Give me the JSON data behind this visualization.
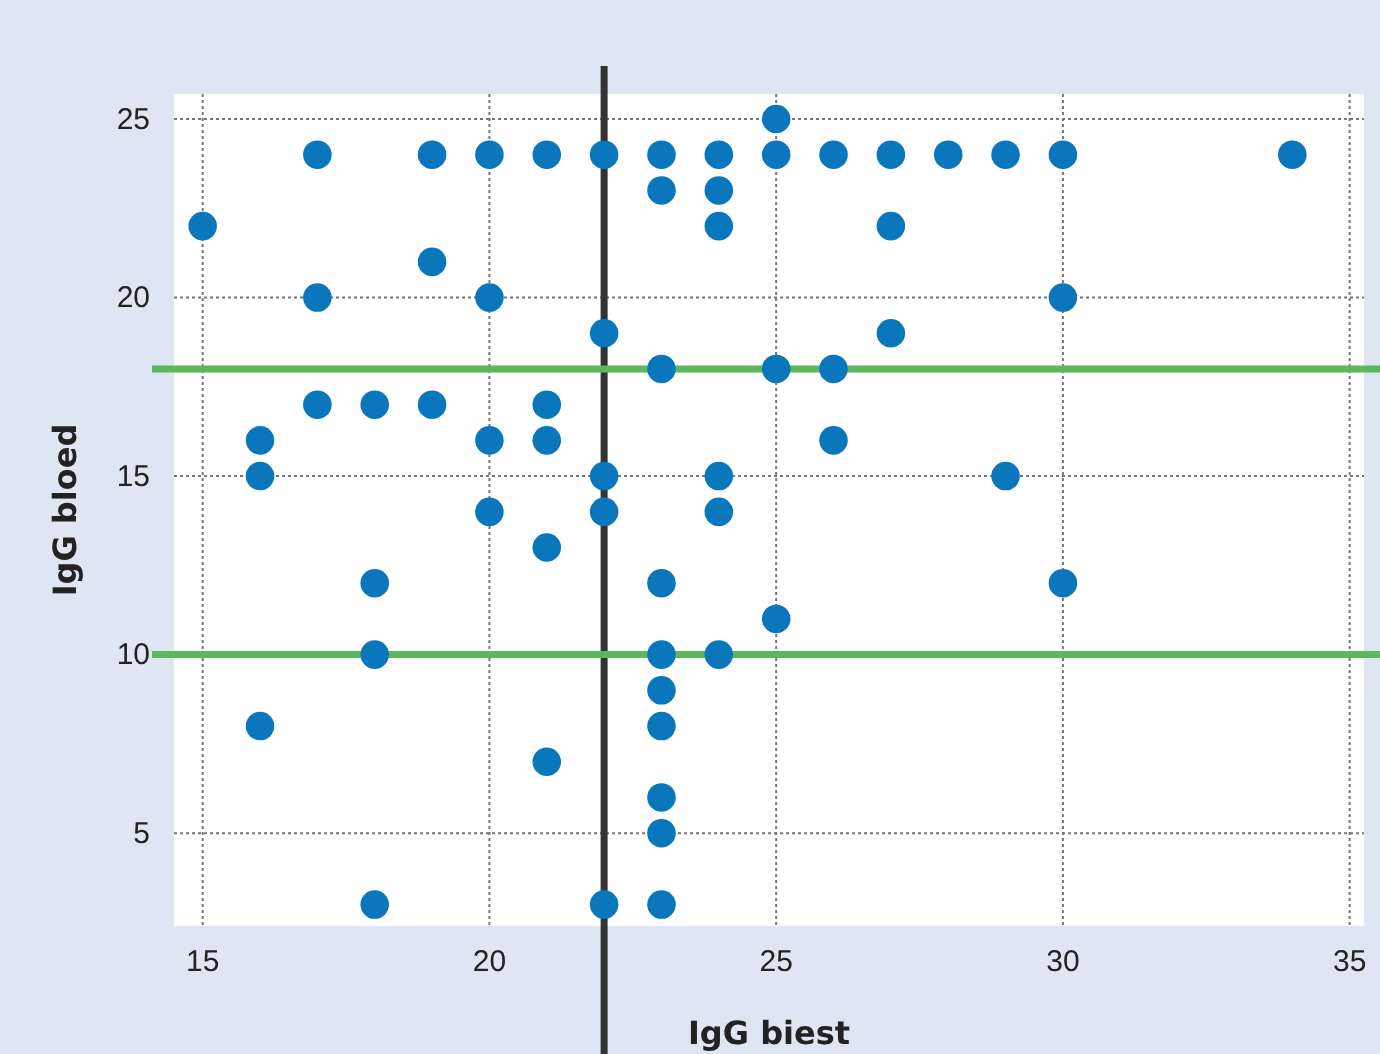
{
  "chart_data": {
    "type": "scatter",
    "xlabel": "IgG biest",
    "ylabel": "IgG bloed",
    "x": [
      15,
      16,
      16,
      16,
      17,
      17,
      17,
      18,
      18,
      18,
      18,
      19,
      19,
      19,
      20,
      20,
      20,
      20,
      21,
      21,
      21,
      21,
      21,
      22,
      22,
      22,
      22,
      22,
      23,
      23,
      23,
      23,
      23,
      23,
      23,
      23,
      23,
      23,
      24,
      24,
      24,
      24,
      24,
      24,
      25,
      25,
      25,
      25,
      26,
      26,
      26,
      27,
      27,
      27,
      28,
      29,
      29,
      30,
      30,
      30,
      34
    ],
    "series": [
      {
        "color": "#0a77bd",
        "values": [
          22,
          16,
          15,
          8,
          24,
          20,
          17,
          17,
          12,
          10,
          3,
          24,
          21,
          17,
          24,
          20,
          16,
          14,
          24,
          17,
          16,
          13,
          7,
          24,
          19,
          15,
          14,
          3,
          24,
          23,
          18,
          12,
          10,
          9,
          8,
          6,
          5,
          3,
          24,
          23,
          22,
          15,
          14,
          10,
          25,
          24,
          18,
          11,
          24,
          18,
          16,
          24,
          22,
          19,
          24,
          24,
          15,
          24,
          20,
          12,
          24
        ]
      }
    ],
    "xlim": [
      14.5,
      35.25
    ],
    "ylim": [
      2.4,
      25.7
    ],
    "xticks": [
      15,
      20,
      25,
      30,
      35
    ],
    "yticks": [
      5,
      10,
      15,
      20,
      25
    ],
    "grid": true,
    "marker": "circle",
    "ref_lines": [
      {
        "axis": "x",
        "value": 22,
        "color": "#333333"
      },
      {
        "axis": "y",
        "value": 18,
        "color": "#5cb85c"
      },
      {
        "axis": "y",
        "value": 10,
        "color": "#5cb85c"
      }
    ]
  }
}
